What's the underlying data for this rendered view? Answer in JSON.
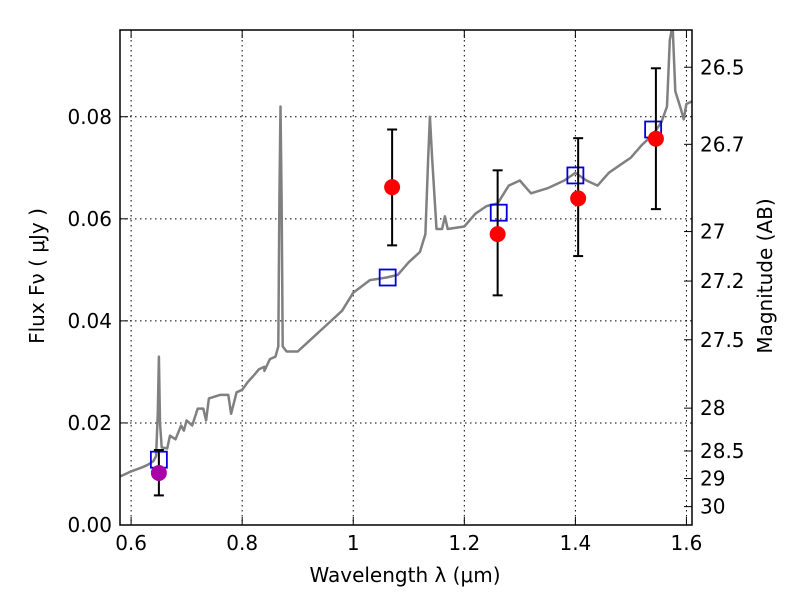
{
  "chart_data": {
    "type": "line",
    "xlabel": "Wavelength  λ (μm)",
    "ylabel": "Flux  Fν  ( μJy )",
    "ylabel_right": "Magnitude (AB)",
    "xlim": [
      0.58,
      1.61
    ],
    "ylim": [
      0.0,
      0.097
    ],
    "grid": true,
    "x_ticks": [
      {
        "value": 0.6,
        "label": "0.6"
      },
      {
        "value": 0.8,
        "label": "0.8"
      },
      {
        "value": 1.0,
        "label": "1"
      },
      {
        "value": 1.2,
        "label": "1.2"
      },
      {
        "value": 1.4,
        "label": "1.4"
      },
      {
        "value": 1.6,
        "label": "1.6"
      }
    ],
    "y_ticks": [
      {
        "value": 0.0,
        "label": "0.00"
      },
      {
        "value": 0.02,
        "label": "0.02"
      },
      {
        "value": 0.04,
        "label": "0.04"
      },
      {
        "value": 0.06,
        "label": "0.06"
      },
      {
        "value": 0.08,
        "label": "0.08"
      }
    ],
    "right_ticks": [
      {
        "flux": 0.0897,
        "label": "26.5"
      },
      {
        "flux": 0.0746,
        "label": "26.7"
      },
      {
        "flux": 0.0575,
        "label": "27"
      },
      {
        "flux": 0.0478,
        "label": "27.2"
      },
      {
        "flux": 0.0363,
        "label": "27.5"
      },
      {
        "flux": 0.0229,
        "label": "28"
      },
      {
        "flux": 0.0145,
        "label": "28.5"
      },
      {
        "flux": 0.0091,
        "label": "29"
      },
      {
        "flux": 0.0036,
        "label": "30"
      }
    ],
    "series": [
      {
        "type": "line",
        "color": "#808080",
        "points": [
          [
            0.58,
            0.0095
          ],
          [
            0.6,
            0.0105
          ],
          [
            0.62,
            0.0113
          ],
          [
            0.63,
            0.0118
          ],
          [
            0.64,
            0.0125
          ],
          [
            0.645,
            0.0135
          ],
          [
            0.648,
            0.022
          ],
          [
            0.65,
            0.033
          ],
          [
            0.652,
            0.02
          ],
          [
            0.655,
            0.0152
          ],
          [
            0.665,
            0.015
          ],
          [
            0.67,
            0.0175
          ],
          [
            0.68,
            0.0168
          ],
          [
            0.69,
            0.0195
          ],
          [
            0.695,
            0.0185
          ],
          [
            0.7,
            0.0205
          ],
          [
            0.71,
            0.0195
          ],
          [
            0.72,
            0.0228
          ],
          [
            0.73,
            0.0228
          ],
          [
            0.735,
            0.0205
          ],
          [
            0.74,
            0.0248
          ],
          [
            0.76,
            0.0255
          ],
          [
            0.775,
            0.0255
          ],
          [
            0.78,
            0.0218
          ],
          [
            0.79,
            0.026
          ],
          [
            0.8,
            0.0265
          ],
          [
            0.81,
            0.028
          ],
          [
            0.82,
            0.0292
          ],
          [
            0.83,
            0.0305
          ],
          [
            0.84,
            0.031
          ],
          [
            0.84,
            0.0302
          ],
          [
            0.85,
            0.0325
          ],
          [
            0.86,
            0.033
          ],
          [
            0.865,
            0.035
          ],
          [
            0.867,
            0.064
          ],
          [
            0.869,
            0.082
          ],
          [
            0.871,
            0.064
          ],
          [
            0.873,
            0.035
          ],
          [
            0.88,
            0.034
          ],
          [
            0.9,
            0.034
          ],
          [
            0.92,
            0.036
          ],
          [
            0.95,
            0.039
          ],
          [
            0.98,
            0.042
          ],
          [
            1.0,
            0.0455
          ],
          [
            1.03,
            0.048
          ],
          [
            1.06,
            0.0485
          ],
          [
            1.08,
            0.049
          ],
          [
            1.1,
            0.0515
          ],
          [
            1.12,
            0.0535
          ],
          [
            1.13,
            0.057
          ],
          [
            1.135,
            0.072
          ],
          [
            1.138,
            0.08
          ],
          [
            1.142,
            0.072
          ],
          [
            1.15,
            0.058
          ],
          [
            1.16,
            0.058
          ],
          [
            1.165,
            0.0605
          ],
          [
            1.17,
            0.058
          ],
          [
            1.2,
            0.0585
          ],
          [
            1.22,
            0.061
          ],
          [
            1.24,
            0.0625
          ],
          [
            1.26,
            0.063
          ],
          [
            1.28,
            0.0665
          ],
          [
            1.3,
            0.0675
          ],
          [
            1.32,
            0.065
          ],
          [
            1.35,
            0.066
          ],
          [
            1.38,
            0.0675
          ],
          [
            1.4,
            0.069
          ],
          [
            1.42,
            0.0675
          ],
          [
            1.44,
            0.0665
          ],
          [
            1.46,
            0.069
          ],
          [
            1.48,
            0.0705
          ],
          [
            1.5,
            0.072
          ],
          [
            1.52,
            0.0745
          ],
          [
            1.54,
            0.0765
          ],
          [
            1.555,
            0.079
          ],
          [
            1.565,
            0.082
          ],
          [
            1.57,
            0.095
          ],
          [
            1.575,
            0.098
          ],
          [
            1.58,
            0.085
          ],
          [
            1.59,
            0.0815
          ],
          [
            1.595,
            0.0795
          ],
          [
            1.6,
            0.0825
          ],
          [
            1.61,
            0.083
          ]
        ]
      },
      {
        "type": "errorbar",
        "color": "#ff0000",
        "points": [
          {
            "x": 1.07,
            "y": 0.0662,
            "yerr_low": 0.0548,
            "yerr_high": 0.0775
          },
          {
            "x": 1.26,
            "y": 0.057,
            "yerr_low": 0.045,
            "yerr_high": 0.0695
          },
          {
            "x": 1.405,
            "y": 0.064,
            "yerr_low": 0.0527,
            "yerr_high": 0.0758
          },
          {
            "x": 1.545,
            "y": 0.0757,
            "yerr_low": 0.0619,
            "yerr_high": 0.0895
          }
        ]
      },
      {
        "type": "errorbar",
        "color": "#aa00aa",
        "points": [
          {
            "x": 0.65,
            "y": 0.0102,
            "yerr_low": 0.0058,
            "yerr_high": 0.0147
          }
        ]
      },
      {
        "type": "square",
        "color": "#0000dd",
        "points": [
          {
            "x": 0.65,
            "y": 0.0128
          },
          {
            "x": 1.062,
            "y": 0.0485
          },
          {
            "x": 1.262,
            "y": 0.0612
          },
          {
            "x": 1.4,
            "y": 0.0685
          },
          {
            "x": 1.54,
            "y": 0.0775
          }
        ]
      }
    ]
  }
}
